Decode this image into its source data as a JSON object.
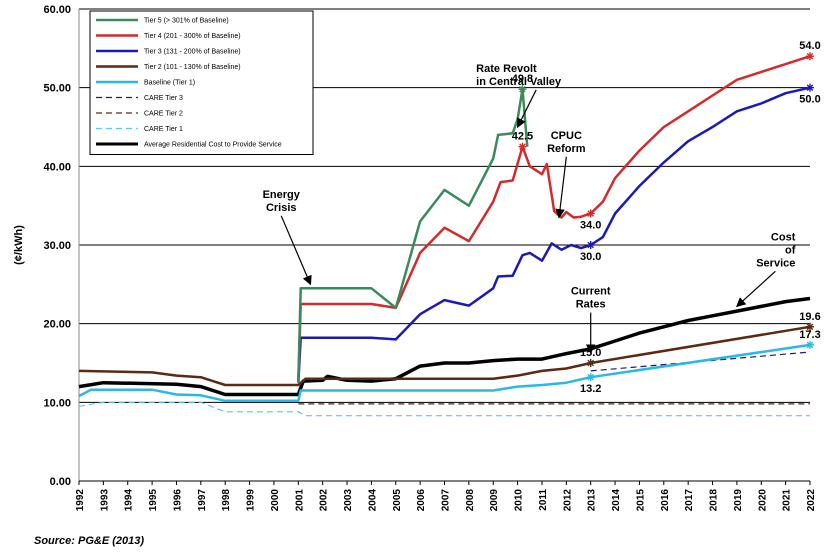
{
  "chart_data": {
    "type": "line",
    "ylabel": "(¢/kWh)",
    "xlabel": "",
    "ylim": [
      0,
      60
    ],
    "xlim": [
      1992,
      2022
    ],
    "yticks": [
      "0.00",
      "10.00",
      "20.00",
      "30.00",
      "40.00",
      "50.00",
      "60.00"
    ],
    "xticks": [
      "1992",
      "1993",
      "1994",
      "1995",
      "1996",
      "1997",
      "1998",
      "1999",
      "2000",
      "2001",
      "2002",
      "2003",
      "2004",
      "2005",
      "2006",
      "2007",
      "2008",
      "2009",
      "2010",
      "2011",
      "2012",
      "2013",
      "2014",
      "2015",
      "2016",
      "2017",
      "2018",
      "2019",
      "2020",
      "2021",
      "2022"
    ],
    "grid": "horizontal",
    "legend_position": "top-left",
    "source": "Source: PG&E (2013)",
    "series": [
      {
        "name": "Tier 5 (> 301% of Baseline)",
        "color": "#3a8a5c",
        "width": 2.5,
        "dash": "",
        "points": [
          [
            2001.0,
            12.5
          ],
          [
            2001.1,
            24.5
          ],
          [
            2004.0,
            24.5
          ],
          [
            2005.0,
            22.0
          ],
          [
            2006.0,
            33.0
          ],
          [
            2007.0,
            37.0
          ],
          [
            2008.0,
            35.0
          ],
          [
            2009.0,
            41.0
          ],
          [
            2009.2,
            44.0
          ],
          [
            2009.8,
            44.2
          ],
          [
            2010.0,
            46.0
          ],
          [
            2010.2,
            49.8
          ],
          [
            2010.4,
            42.5
          ]
        ]
      },
      {
        "name": "Tier 4 (201 - 300% of Baseline)",
        "color": "#d42a2a",
        "width": 2.5,
        "dash": "",
        "points": [
          [
            2001.0,
            12.5
          ],
          [
            2001.1,
            22.5
          ],
          [
            2004.0,
            22.5
          ],
          [
            2005.0,
            22.0
          ],
          [
            2006.0,
            29.0
          ],
          [
            2007.0,
            32.2
          ],
          [
            2008.0,
            30.5
          ],
          [
            2009.0,
            35.5
          ],
          [
            2009.3,
            38.0
          ],
          [
            2009.8,
            38.2
          ],
          [
            2010.2,
            42.5
          ],
          [
            2010.5,
            40.0
          ],
          [
            2011.0,
            39.0
          ],
          [
            2011.2,
            40.3
          ],
          [
            2011.5,
            34.3
          ],
          [
            2011.8,
            33.5
          ],
          [
            2012.0,
            34.2
          ],
          [
            2012.3,
            33.5
          ],
          [
            2012.6,
            33.6
          ],
          [
            2013.0,
            34.0
          ],
          [
            2013.5,
            35.5
          ],
          [
            2014.0,
            38.5
          ],
          [
            2015.0,
            42.0
          ],
          [
            2016.0,
            45.0
          ],
          [
            2017.0,
            47.0
          ],
          [
            2018.0,
            49.0
          ],
          [
            2019.0,
            51.0
          ],
          [
            2020.0,
            52.0
          ],
          [
            2021.0,
            53.0
          ],
          [
            2022.0,
            54.0
          ]
        ]
      },
      {
        "name": "Tier 3 (131 - 200% of Baseline)",
        "color": "#1a1ab8",
        "width": 2.5,
        "dash": "",
        "points": [
          [
            2001.0,
            12.5
          ],
          [
            2001.1,
            18.2
          ],
          [
            2004.0,
            18.2
          ],
          [
            2005.0,
            18.0
          ],
          [
            2006.0,
            21.2
          ],
          [
            2007.0,
            23.0
          ],
          [
            2008.0,
            22.3
          ],
          [
            2009.0,
            24.5
          ],
          [
            2009.2,
            26.0
          ],
          [
            2009.8,
            26.1
          ],
          [
            2010.2,
            28.7
          ],
          [
            2010.5,
            29.0
          ],
          [
            2011.0,
            28.0
          ],
          [
            2011.4,
            30.2
          ],
          [
            2011.8,
            29.4
          ],
          [
            2012.2,
            30.0
          ],
          [
            2012.6,
            29.6
          ],
          [
            2013.0,
            30.0
          ],
          [
            2013.5,
            31.0
          ],
          [
            2014.0,
            34.0
          ],
          [
            2015.0,
            37.5
          ],
          [
            2016.0,
            40.5
          ],
          [
            2017.0,
            43.2
          ],
          [
            2018.0,
            45.0
          ],
          [
            2019.0,
            47.0
          ],
          [
            2020.0,
            48.0
          ],
          [
            2021.0,
            49.3
          ],
          [
            2022.0,
            50.0
          ]
        ]
      },
      {
        "name": "Tier 2 (101 - 130% of Baseline)",
        "color": "#5a2a12",
        "width": 2.5,
        "dash": "",
        "points": [
          [
            1992.0,
            14.0
          ],
          [
            1995.0,
            13.8
          ],
          [
            1996.0,
            13.4
          ],
          [
            1997.0,
            13.2
          ],
          [
            1998.0,
            12.2
          ],
          [
            2001.0,
            12.2
          ],
          [
            2001.3,
            13.0
          ],
          [
            2005.0,
            13.0
          ],
          [
            2009.0,
            13.0
          ],
          [
            2010.0,
            13.4
          ],
          [
            2011.0,
            14.0
          ],
          [
            2012.0,
            14.3
          ],
          [
            2013.0,
            15.0
          ],
          [
            2022.0,
            19.6
          ]
        ]
      },
      {
        "name": "Baseline (Tier 1)",
        "color": "#2ab8e8",
        "width": 2.5,
        "dash": "",
        "points": [
          [
            1992.0,
            10.8
          ],
          [
            1992.5,
            11.6
          ],
          [
            1995.0,
            11.6
          ],
          [
            1996.0,
            11.0
          ],
          [
            1997.0,
            10.9
          ],
          [
            1998.0,
            10.2
          ],
          [
            2001.0,
            10.2
          ],
          [
            2001.1,
            11.5
          ],
          [
            2009.0,
            11.5
          ],
          [
            2010.0,
            12.0
          ],
          [
            2011.0,
            12.2
          ],
          [
            2012.0,
            12.5
          ],
          [
            2013.0,
            13.2
          ],
          [
            2022.0,
            17.3
          ]
        ]
      },
      {
        "name": "CARE Tier 3",
        "color": "#1a1a7a",
        "width": 1.2,
        "dash": "6,4",
        "points": [
          [
            2013.0,
            14.0
          ],
          [
            2022.0,
            16.4
          ]
        ]
      },
      {
        "name": "CARE Tier 2",
        "color": "#5a2a12",
        "width": 1.2,
        "dash": "6,4",
        "points": [
          [
            2001.0,
            9.8
          ],
          [
            2022.0,
            9.8
          ]
        ]
      },
      {
        "name": "CARE Tier 1",
        "color": "#5ac8e8",
        "width": 1.2,
        "dash": "6,4",
        "points": [
          [
            1992.0,
            9.5
          ],
          [
            1993.0,
            10.0
          ],
          [
            1997.0,
            10.0
          ],
          [
            1998.0,
            8.8
          ],
          [
            2001.0,
            8.8
          ],
          [
            2001.3,
            8.3
          ],
          [
            2022.0,
            8.3
          ]
        ]
      },
      {
        "name": "Average Residential Cost to Provide Service",
        "color": "#000000",
        "width": 3.5,
        "dash": "",
        "points": [
          [
            1992.0,
            12.0
          ],
          [
            1993.0,
            12.5
          ],
          [
            1996.0,
            12.3
          ],
          [
            1997.0,
            12.0
          ],
          [
            1998.0,
            11.0
          ],
          [
            2001.0,
            11.0
          ],
          [
            2001.2,
            12.7
          ],
          [
            2002.0,
            12.8
          ],
          [
            2002.2,
            13.3
          ],
          [
            2003.0,
            12.8
          ],
          [
            2004.0,
            12.7
          ],
          [
            2005.0,
            13.0
          ],
          [
            2006.0,
            14.6
          ],
          [
            2007.0,
            15.0
          ],
          [
            2008.0,
            15.0
          ],
          [
            2009.0,
            15.3
          ],
          [
            2010.0,
            15.5
          ],
          [
            2011.0,
            15.5
          ],
          [
            2012.0,
            16.2
          ],
          [
            2013.0,
            16.8
          ],
          [
            2014.0,
            17.8
          ],
          [
            2015.0,
            18.8
          ],
          [
            2016.0,
            19.6
          ],
          [
            2017.0,
            20.4
          ],
          [
            2018.0,
            21.0
          ],
          [
            2019.0,
            21.6
          ],
          [
            2020.0,
            22.2
          ],
          [
            2021.0,
            22.8
          ],
          [
            2022.0,
            23.2
          ]
        ]
      }
    ],
    "markers": [
      {
        "x": 2010.2,
        "y": 49.8,
        "color": "#3a8a5c"
      },
      {
        "x": 2010.2,
        "y": 42.5,
        "color": "#d42a2a"
      },
      {
        "x": 2013.0,
        "y": 34.0,
        "color": "#d42a2a"
      },
      {
        "x": 2013.0,
        "y": 30.0,
        "color": "#1a1ab8"
      },
      {
        "x": 2013.0,
        "y": 15.0,
        "color": "#5a2a12"
      },
      {
        "x": 2013.0,
        "y": 13.2,
        "color": "#2ab8e8"
      },
      {
        "x": 2022.0,
        "y": 54.0,
        "color": "#d42a2a"
      },
      {
        "x": 2022.0,
        "y": 50.0,
        "color": "#1a1ab8"
      },
      {
        "x": 2022.0,
        "y": 19.6,
        "color": "#5a2a12"
      },
      {
        "x": 2022.0,
        "y": 17.3,
        "color": "#2ab8e8"
      }
    ],
    "value_labels": [
      {
        "text": "49.8",
        "x": 2010.2,
        "y": 49.8,
        "pos": "above"
      },
      {
        "text": "42.5",
        "x": 2010.2,
        "y": 42.5,
        "pos": "above"
      },
      {
        "text": "34.0",
        "x": 2013.0,
        "y": 34.0,
        "pos": "below"
      },
      {
        "text": "30.0",
        "x": 2013.0,
        "y": 30.0,
        "pos": "below"
      },
      {
        "text": "15.0",
        "x": 2013.0,
        "y": 15.0,
        "pos": "above"
      },
      {
        "text": "13.2",
        "x": 2013.0,
        "y": 13.2,
        "pos": "below"
      },
      {
        "text": "54.0",
        "x": 2022.0,
        "y": 54.0,
        "pos": "above"
      },
      {
        "text": "50.0",
        "x": 2022.0,
        "y": 50.0,
        "pos": "below"
      },
      {
        "text": "19.6",
        "x": 2022.0,
        "y": 19.6,
        "pos": "above"
      },
      {
        "text": "17.3",
        "x": 2022.0,
        "y": 17.3,
        "pos": "above"
      }
    ],
    "annotations": [
      {
        "lines": [
          "Energy",
          "Crisis"
        ],
        "x": 2000.3,
        "y": 36.0,
        "arrow_to": [
          2001.5,
          25.0
        ],
        "anchor": "middle"
      },
      {
        "lines": [
          "Rate Revolt",
          "in Central Valley"
        ],
        "x": 2008.3,
        "y": 52.0,
        "arrow_to": [
          2010.0,
          45.0
        ],
        "anchor": "start"
      },
      {
        "lines": [
          "CPUC",
          "Reform"
        ],
        "x": 2012.0,
        "y": 43.5,
        "arrow_to": [
          2011.7,
          33.5
        ],
        "anchor": "middle"
      },
      {
        "lines": [
          "Current",
          "Rates"
        ],
        "x": 2013.0,
        "y": 23.7,
        "arrow_to": [
          2013.0,
          16.3
        ],
        "anchor": "middle"
      },
      {
        "lines": [
          "Cost",
          "of",
          "Service"
        ],
        "x": 2021.4,
        "y": 30.6,
        "arrow_to": [
          2019.0,
          22.2
        ],
        "anchor": "end"
      }
    ]
  }
}
